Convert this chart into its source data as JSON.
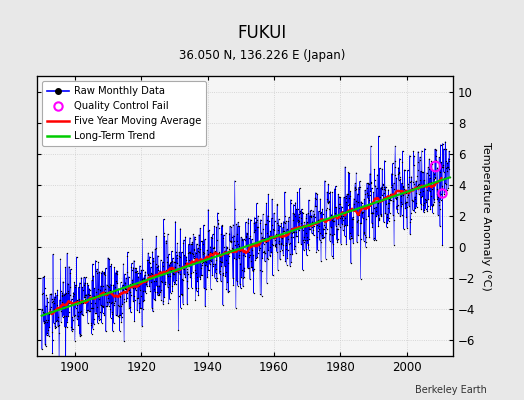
{
  "title": "FUKUI",
  "subtitle": "36.050 N, 136.226 E (Japan)",
  "ylabel": "Temperature Anomaly (°C)",
  "credit": "Berkeley Earth",
  "year_start": 1890,
  "year_end": 2012,
  "ylim": [
    -7,
    11
  ],
  "yticks": [
    -6,
    -4,
    -2,
    0,
    2,
    4,
    6,
    8,
    10
  ],
  "xticks": [
    1900,
    1920,
    1940,
    1960,
    1980,
    2000
  ],
  "line_color": "#0000ff",
  "marker_color": "#000000",
  "moving_avg_color": "#ff0000",
  "trend_color": "#00cc00",
  "qc_fail_color": "#ff00ff",
  "background_color": "#e8e8e8",
  "plot_bg_color": "#f5f5f5",
  "noise_std": 1.4,
  "trend_slope": 0.006,
  "seed": 17
}
